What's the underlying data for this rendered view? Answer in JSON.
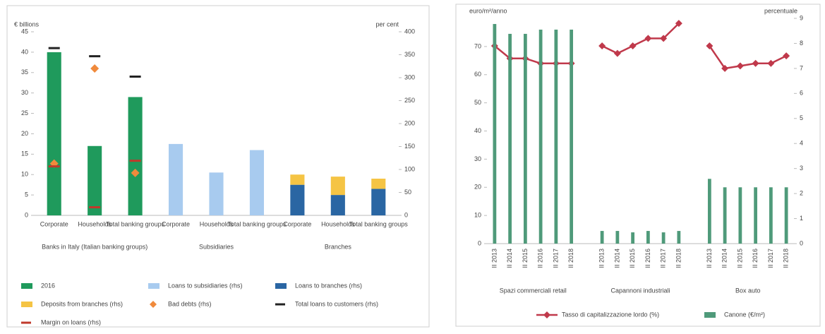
{
  "chart_data": [
    {
      "type": "bar",
      "y_label": "€ billions",
      "y2_label": "per cent",
      "ylim": [
        0,
        45
      ],
      "yticks": [
        0,
        5,
        10,
        15,
        20,
        25,
        30,
        35,
        40,
        45
      ],
      "y2lim": [
        0,
        400
      ],
      "y2ticks": [
        0,
        50,
        100,
        150,
        200,
        250,
        300,
        350,
        400
      ],
      "groups": [
        {
          "label": "Banks in Italy (Italian banking groups)",
          "categories": [
            "Corporate",
            "Households",
            "Total banking groups"
          ]
        },
        {
          "label": "Subsidiaries",
          "categories": [
            "Corporate",
            "Households",
            "Total banking groups"
          ]
        },
        {
          "label": "Branches",
          "categories": [
            "Corporate",
            "Households",
            "Total banking groups"
          ]
        }
      ],
      "legend": "bottom",
      "series": [
        {
          "name": "2016",
          "color": "#1f9a5c",
          "values": [
            40,
            17,
            29,
            null,
            null,
            null,
            null,
            null,
            null
          ]
        },
        {
          "name": "Loans to subsidiaries (rhs)",
          "color": "#a8cbef",
          "values": [
            null,
            null,
            null,
            17.5,
            10.5,
            16,
            null,
            null,
            null
          ]
        },
        {
          "name": "Loans to branches (rhs)",
          "color": "#2a66a3",
          "values": [
            null,
            null,
            null,
            null,
            null,
            null,
            7.5,
            5,
            6.5
          ]
        },
        {
          "name": "Deposits from branches (rhs)",
          "color": "#f5c444",
          "values": [
            null,
            null,
            null,
            null,
            null,
            null,
            2.5,
            4.5,
            2.5
          ]
        },
        {
          "name": "Bad debts (rhs)",
          "color": "#f08a3c",
          "marker": "diamond",
          "values": [
            12.7,
            36,
            10.4,
            null,
            null,
            null,
            null,
            null,
            null
          ]
        },
        {
          "name": "Total loans to customers (rhs)",
          "color": "#222222",
          "marker": "dash",
          "values": [
            41,
            39,
            34,
            null,
            null,
            null,
            null,
            null,
            null
          ]
        },
        {
          "name": "Margin on loans (rhs)",
          "color": "#c0392b",
          "marker": "dash",
          "values": [
            12,
            2,
            13.4,
            null,
            null,
            null,
            null,
            null,
            null
          ]
        }
      ]
    },
    {
      "type": "bar",
      "y_label": "euro/m²/anno",
      "y2_label": "percentuale",
      "ylim": [
        0,
        80
      ],
      "yticks": [
        0,
        10,
        20,
        30,
        40,
        50,
        60,
        70
      ],
      "y2lim": [
        0,
        9
      ],
      "y2ticks": [
        0,
        1,
        2,
        3,
        4,
        5,
        6,
        7,
        8,
        9
      ],
      "groups": [
        {
          "label": "Spazi commerciali retail",
          "categories": [
            "II 2013",
            "II 2014",
            "II 2015",
            "II 2016",
            "II 2017",
            "II 2018"
          ]
        },
        {
          "label": "Capannoni industriali",
          "categories": [
            "II 2013",
            "II 2014",
            "II 2015",
            "II 2016",
            "II 2017",
            "II 2018"
          ]
        },
        {
          "label": "Box auto",
          "categories": [
            "II 2013",
            "II 2014",
            "II 2015",
            "II 2016",
            "II 2017",
            "II 2018"
          ]
        }
      ],
      "legend": "bottom",
      "series": [
        {
          "name": "Tasso di capitalizzazione lordo (%)",
          "color": "#c0394b",
          "line": true,
          "axis": "y2",
          "values": [
            7.9,
            7.4,
            7.4,
            7.2,
            7.2,
            7.2,
            7.9,
            7.6,
            7.9,
            8.2,
            8.2,
            8.8,
            7.9,
            7.0,
            7.1,
            7.2,
            7.2,
            7.5
          ]
        },
        {
          "name": "Canone (€/m²)",
          "color": "#4f9a7a",
          "values": [
            78,
            74.5,
            74.5,
            76,
            76,
            76,
            4.5,
            4.5,
            4,
            4.5,
            4,
            4.5,
            23,
            20,
            20,
            20,
            20,
            20
          ]
        }
      ]
    }
  ]
}
